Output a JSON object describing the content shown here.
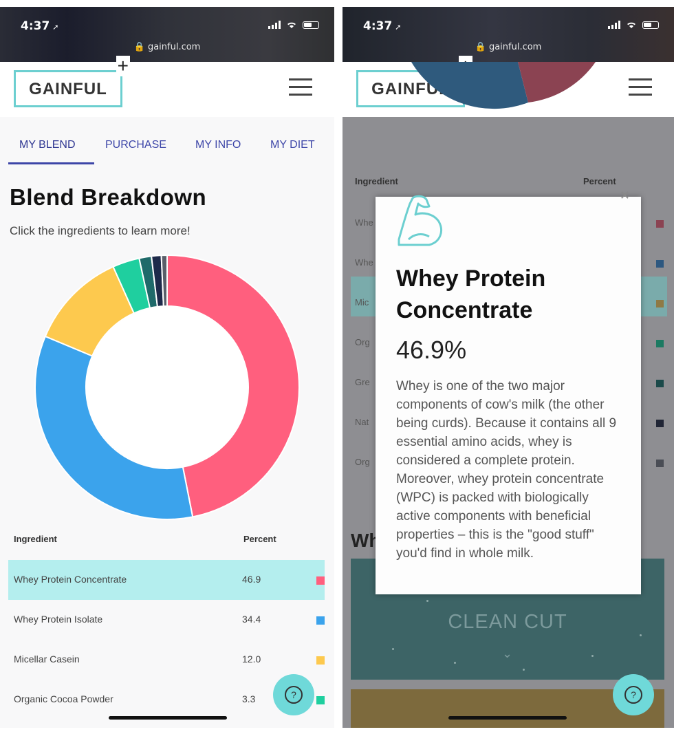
{
  "status_bar": {
    "time": "4:37",
    "url": "gainful.com"
  },
  "header": {
    "logo_text": "GAINFUL",
    "logo_plus": "+"
  },
  "tabs": [
    {
      "label": "MY BLEND"
    },
    {
      "label": "PURCHASE"
    },
    {
      "label": "MY INFO"
    },
    {
      "label": "MY DIET"
    }
  ],
  "blend": {
    "title": "Blend Breakdown",
    "subtitle": "Click the ingredients to learn more!",
    "table_headers": {
      "ingredient": "Ingredient",
      "percent": "Percent"
    },
    "rows": [
      {
        "name": "Whey Protein Concentrate",
        "value": "46.9",
        "color": "#ff5f7e"
      },
      {
        "name": "Whey Protein Isolate",
        "value": "34.4",
        "color": "#3ba3ec"
      },
      {
        "name": "Micellar Casein",
        "value": "12.0",
        "color": "#fdc94e"
      },
      {
        "name": "Organic Cocoa Powder",
        "value": "3.3",
        "color": "#1fcf9f"
      }
    ]
  },
  "chart_data": {
    "type": "pie",
    "title": "",
    "slices": [
      {
        "value": 46.9,
        "color": "#ff5f7e"
      },
      {
        "value": 34.4,
        "color": "#3ba3ec"
      },
      {
        "value": 12.0,
        "color": "#fdc94e"
      },
      {
        "value": 3.3,
        "color": "#1fcf9f"
      },
      {
        "value": 1.5,
        "color": "#1f6a6a"
      },
      {
        "value": 1.2,
        "color": "#1e2a4a"
      },
      {
        "value": 0.7,
        "color": "#5a5f6a"
      }
    ]
  },
  "right_background": {
    "table_headers": {
      "ingredient": "Ingredient",
      "percent": "Percent"
    },
    "row_prefixes": [
      "Whe",
      "Whe",
      "Mic",
      "Org",
      "Gre",
      "Nat",
      "Org"
    ],
    "swatch_colors": [
      "#8b4352",
      "#2d5880",
      "#8f7a45",
      "#1c7a62",
      "#1b4a4a",
      "#202535",
      "#4a4d55"
    ],
    "section_heading": "Wh",
    "banner_label": "CLEAN CUT"
  },
  "modal": {
    "title": "Whey Protein Concentrate",
    "percent": "46.9%",
    "description": "Whey is one of the two major components of cow's milk (the other being curds). Because it contains all 9 essential amino acids, whey is considered a complete protein. Moreover, whey protein concentrate (WPC) is packed with biologically active components with beneficial properties – this is the \"good stuff\" you'd find in whole milk.",
    "icon": "flexed-arm-icon",
    "close_icon": "close-icon"
  },
  "help_button": {
    "label": "?"
  },
  "colors": {
    "accent": "#6ccfd0",
    "tab": "#3d46a8",
    "highlight": "#b4eeee"
  }
}
